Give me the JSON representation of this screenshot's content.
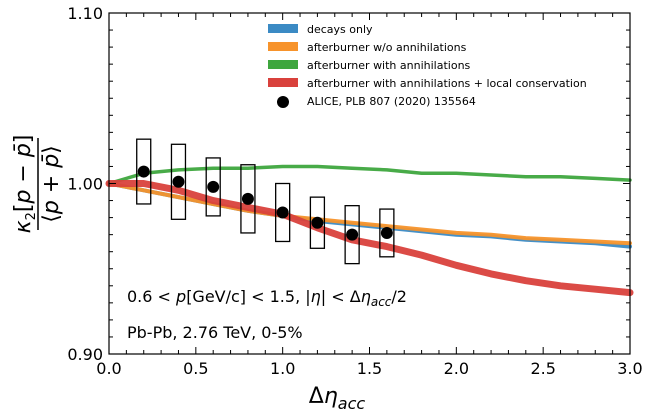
{
  "chart_data": {
    "type": "line",
    "xlabel": "Δη_acc",
    "ylabel": "κ2[p − p̄] / ⟨p + p̄⟩",
    "xlim": [
      0.0,
      3.0
    ],
    "ylim": [
      0.9,
      1.1
    ],
    "xticks": [
      "0.0",
      "0.5",
      "1.0",
      "1.5",
      "2.0",
      "2.5",
      "3.0"
    ],
    "yticks": [
      "0.90",
      "1.00",
      "1.10"
    ],
    "legend_position": "top-right",
    "series": [
      {
        "name": "decays only",
        "color": "#3b8ac4",
        "band": true,
        "x": [
          0.0,
          0.2,
          0.4,
          0.6,
          0.8,
          1.0,
          1.2,
          1.4,
          1.6,
          1.8,
          2.0,
          2.2,
          2.4,
          2.6,
          2.8,
          3.0
        ],
        "y": [
          1.0,
          0.996,
          0.992,
          0.988,
          0.984,
          0.981,
          0.978,
          0.976,
          0.974,
          0.972,
          0.97,
          0.969,
          0.967,
          0.966,
          0.965,
          0.963
        ]
      },
      {
        "name": "afterburner w/o annihilations",
        "color": "#f7932b",
        "band": true,
        "x": [
          0.0,
          0.2,
          0.4,
          0.6,
          0.8,
          1.0,
          1.2,
          1.4,
          1.6,
          1.8,
          2.0,
          2.2,
          2.4,
          2.6,
          2.8,
          3.0
        ],
        "y": [
          1.0,
          0.996,
          0.992,
          0.988,
          0.984,
          0.981,
          0.979,
          0.977,
          0.975,
          0.973,
          0.971,
          0.97,
          0.968,
          0.967,
          0.966,
          0.965
        ]
      },
      {
        "name": "afterburner with annihilations",
        "color": "#3ea63e",
        "band": true,
        "x": [
          0.0,
          0.2,
          0.4,
          0.6,
          0.8,
          1.0,
          1.2,
          1.4,
          1.6,
          1.8,
          2.0,
          2.2,
          2.4,
          2.6,
          2.8,
          3.0
        ],
        "y": [
          1.0,
          1.006,
          1.008,
          1.009,
          1.009,
          1.01,
          1.01,
          1.009,
          1.008,
          1.006,
          1.006,
          1.005,
          1.004,
          1.004,
          1.003,
          1.002
        ]
      },
      {
        "name": "afterburner with annihilations + local conservation",
        "color": "#d9413c",
        "band": true,
        "x": [
          0.0,
          0.2,
          0.4,
          0.6,
          0.8,
          1.0,
          1.2,
          1.4,
          1.6,
          1.8,
          2.0,
          2.2,
          2.4,
          2.6,
          2.8,
          3.0
        ],
        "y": [
          1.0,
          1.0,
          0.996,
          0.99,
          0.986,
          0.982,
          0.974,
          0.967,
          0.963,
          0.958,
          0.952,
          0.947,
          0.943,
          0.94,
          0.938,
          0.936
        ]
      }
    ],
    "data_points": {
      "name": "ALICE, PLB 807 (2020) 135564",
      "color": "#000000",
      "x": [
        0.2,
        0.4,
        0.6,
        0.8,
        1.0,
        1.2,
        1.4,
        1.6
      ],
      "y": [
        1.007,
        1.001,
        0.998,
        0.991,
        0.983,
        0.977,
        0.97,
        0.971
      ],
      "sys_err": [
        0.019,
        0.022,
        0.017,
        0.02,
        0.017,
        0.015,
        0.017,
        0.014
      ]
    },
    "annotations": [
      "0.6 < p[GeV/c] < 1.5, |η| < Δη_acc/2",
      "Pb-Pb, 2.76 TeV, 0-5%"
    ]
  }
}
